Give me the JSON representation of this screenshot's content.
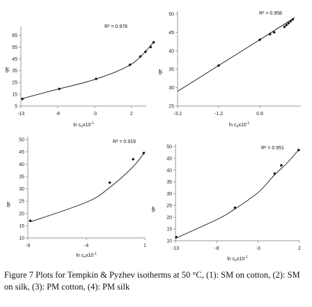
{
  "caption": "Figure 7 Plots for Tempkin & Pyzhev isotherms at 50 °C, (1): SM on cotton, (2): SM on silk, (3): PM cotton, (4): PM silk",
  "chart_data": [
    {
      "type": "scatter",
      "ylabel": "qe",
      "xlabel_main": "ln c",
      "xlabel_sub": "e",
      "xlabel_tail": "x10",
      "xlabel_sup": "-1",
      "xlim": [
        -13,
        4
      ],
      "ylim": [
        5,
        70
      ],
      "xticks": [
        -13,
        -8,
        -3,
        2
      ],
      "yticks": [
        5,
        15,
        25,
        35,
        45,
        55,
        65
      ],
      "r2_label": "R² = 0.978",
      "points": [
        [
          -12.8,
          11
        ],
        [
          -7.8,
          19.5
        ],
        [
          -2.8,
          28
        ],
        [
          1.8,
          40
        ],
        [
          3.2,
          47
        ],
        [
          3.9,
          51
        ],
        [
          4.6,
          55
        ],
        [
          5.0,
          59
        ]
      ],
      "curve": [
        [
          -13,
          11
        ],
        [
          -8,
          19.3
        ],
        [
          -3,
          27.5
        ],
        [
          2,
          40.5
        ],
        [
          5.0,
          59
        ]
      ]
    },
    {
      "type": "scatter",
      "ylabel": "qe",
      "xlabel_main": "ln c",
      "xlabel_sub": "e",
      "xlabel_tail": "x10",
      "xlabel_sup": "-1",
      "xlim": [
        -3.2,
        2.8
      ],
      "ylim": [
        25,
        50
      ],
      "xticks": [
        -3.2,
        -1.2,
        0.8
      ],
      "yticks": [
        25,
        30,
        35,
        40,
        45,
        50
      ],
      "r2_label": "R² = 0.958",
      "points": [
        [
          -1.2,
          36
        ],
        [
          0.8,
          43
        ],
        [
          1.3,
          44.5
        ],
        [
          1.5,
          45
        ],
        [
          2.0,
          46.5
        ],
        [
          2.1,
          47
        ],
        [
          2.2,
          47.5
        ],
        [
          2.3,
          48
        ],
        [
          2.4,
          48.5
        ]
      ],
      "curve": [
        [
          -3.2,
          29
        ],
        [
          -1.2,
          36
        ],
        [
          0.8,
          43
        ],
        [
          2.5,
          49
        ]
      ]
    },
    {
      "type": "scatter",
      "ylabel": "qe",
      "xlabel_main": "ln c",
      "xlabel_sub": "e",
      "xlabel_tail": "x10",
      "xlabel_sup": "-1",
      "xlim": [
        -9,
        1
      ],
      "ylim": [
        10,
        50
      ],
      "xticks": [
        -9,
        -4,
        1
      ],
      "yticks": [
        10,
        15,
        20,
        25,
        30,
        35,
        40,
        45,
        50
      ],
      "r2_label": "R² = 0.919",
      "points": [
        [
          -8.8,
          17
        ],
        [
          -2.0,
          32.5
        ],
        [
          0.0,
          42
        ],
        [
          0.9,
          44.5
        ]
      ],
      "curve": [
        [
          -8.8,
          16.5
        ],
        [
          -4,
          24.5
        ],
        [
          -2,
          30.5
        ],
        [
          0,
          39
        ],
        [
          1.0,
          45
        ]
      ]
    },
    {
      "type": "scatter",
      "ylabel": "qe",
      "xlabel_main": "ln c",
      "xlabel_sub": "e",
      "xlabel_tail": "x10",
      "xlabel_sup": "-1",
      "xlim": [
        -13,
        2
      ],
      "ylim": [
        10,
        50
      ],
      "xticks": [
        -13,
        -8,
        -3,
        2
      ],
      "yticks": [
        10,
        15,
        20,
        25,
        30,
        35,
        40,
        45,
        50
      ],
      "r2_label": "R² = 0.951",
      "points": [
        [
          -12.9,
          11.5
        ],
        [
          -5.8,
          24
        ],
        [
          -1.0,
          38.5
        ],
        [
          -0.2,
          42
        ],
        [
          1.9,
          48.5
        ]
      ],
      "curve": [
        [
          -13,
          11
        ],
        [
          -8,
          19
        ],
        [
          -5.8,
          23.5
        ],
        [
          -3,
          30.5
        ],
        [
          -1,
          38
        ],
        [
          0.5,
          43
        ],
        [
          2.0,
          49
        ]
      ]
    }
  ]
}
